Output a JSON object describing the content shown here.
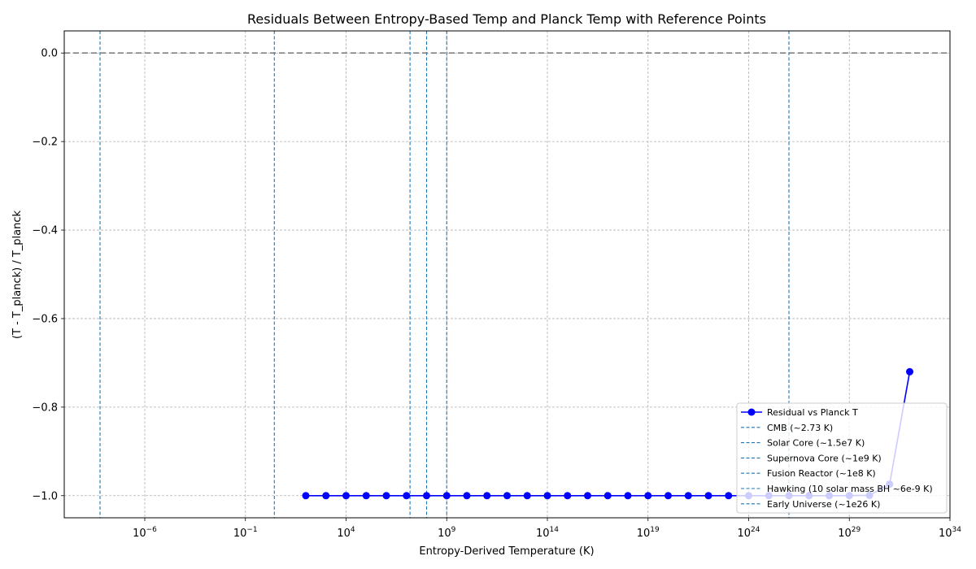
{
  "chart_data": {
    "type": "line",
    "title": "Residuals Between Entropy-Based Temp and Planck Temp with Reference Points",
    "xlabel": "Entropy-Derived Temperature (K)",
    "ylabel": "(T - T_planck) / T_planck",
    "xscale": "log",
    "xlim_exp": [
      -10,
      34
    ],
    "ylim": [
      -1.05,
      0.05
    ],
    "grid": true,
    "legend_position": "lower-right",
    "x_ticks": [
      {
        "base": "10",
        "exp": "−6",
        "value_exp": -6
      },
      {
        "base": "10",
        "exp": "−1",
        "value_exp": -1
      },
      {
        "base": "10",
        "exp": "4",
        "value_exp": 4
      },
      {
        "base": "10",
        "exp": "9",
        "value_exp": 9
      },
      {
        "base": "10",
        "exp": "14",
        "value_exp": 14
      },
      {
        "base": "10",
        "exp": "19",
        "value_exp": 19
      },
      {
        "base": "10",
        "exp": "24",
        "value_exp": 24
      },
      {
        "base": "10",
        "exp": "29",
        "value_exp": 29
      },
      {
        "base": "10",
        "exp": "34",
        "value_exp": 34
      }
    ],
    "y_ticks": [
      {
        "label": "0.0",
        "value": 0.0
      },
      {
        "label": "−0.2",
        "value": -0.2
      },
      {
        "label": "−0.4",
        "value": -0.4
      },
      {
        "label": "−0.6",
        "value": -0.6
      },
      {
        "label": "−0.8",
        "value": -0.8
      },
      {
        "label": "−1.0",
        "value": -1.0
      }
    ],
    "zero_line": {
      "y": 0.0,
      "color": "#808080"
    },
    "series": [
      {
        "name": "Residual vs Planck T",
        "color": "#0000ff",
        "x": [
          "1e2",
          "1e3",
          "1e4",
          "1e5",
          "1e6",
          "1e7",
          "1e8",
          "1e9",
          "1e10",
          "1e11",
          "1e12",
          "1e13",
          "1e14",
          "1e15",
          "1e16",
          "1e17",
          "1e18",
          "1e19",
          "1e20",
          "1e21",
          "1e22",
          "1e23",
          "1e24",
          "1e25",
          "1e26",
          "1e27",
          "1e28",
          "1e29",
          "1e30",
          "1e31",
          "1e32"
        ],
        "y": [
          -1.0,
          -1.0,
          -1.0,
          -1.0,
          -1.0,
          -1.0,
          -1.0,
          -1.0,
          -1.0,
          -1.0,
          -1.0,
          -1.0,
          -1.0,
          -1.0,
          -1.0,
          -1.0,
          -1.0,
          -1.0,
          -1.0,
          -1.0,
          -1.0,
          -1.0,
          -1.0,
          -1.0,
          -1.0,
          -1.0,
          -1.0,
          -0.9999,
          -0.9993,
          -0.974,
          -0.72
        ]
      }
    ],
    "reference_lines": [
      {
        "name": "CMB (~2.73 K)",
        "x": "2.73",
        "color": "#1f77b4"
      },
      {
        "name": "Solar Core (~1.5e7 K)",
        "x": "1.5e7",
        "color": "#1f77b4"
      },
      {
        "name": "Supernova Core (~1e9 K)",
        "x": "1e9",
        "color": "#1f77b4"
      },
      {
        "name": "Fusion Reactor (~1e8 K)",
        "x": "1e8",
        "color": "#1f77b4"
      },
      {
        "name": "Hawking (10 solar mass BH ~6e-9 K)",
        "x": "6e-9",
        "color": "#1f77b4"
      },
      {
        "name": "Early Universe (~1e26 K)",
        "x": "1e26",
        "color": "#1f77b4"
      }
    ]
  }
}
